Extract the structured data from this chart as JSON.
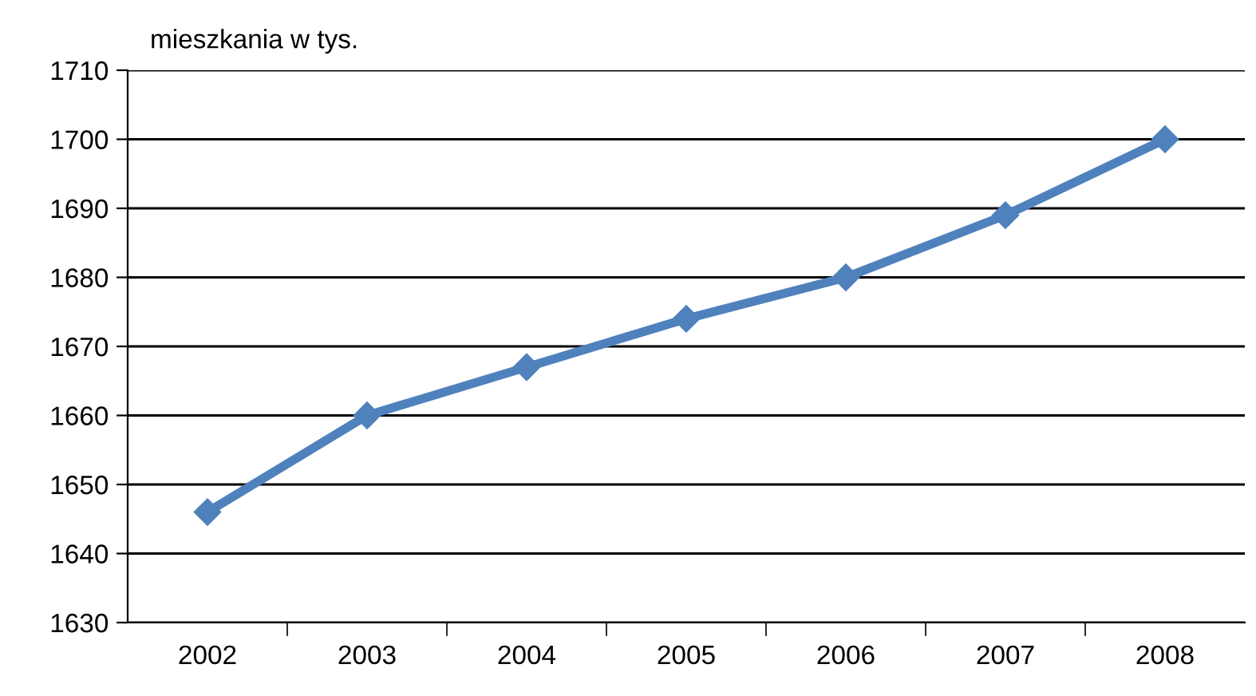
{
  "chart_data": {
    "type": "line",
    "ylabel": "mieszkania w tys.",
    "categories": [
      "2002",
      "2003",
      "2004",
      "2005",
      "2006",
      "2007",
      "2008"
    ],
    "series": [
      {
        "color": "#4f81bd",
        "values": [
          1646,
          1660,
          1667,
          1674,
          1680,
          1689,
          1700
        ]
      }
    ],
    "ylim": [
      1630,
      1710
    ],
    "yticks": [
      1630,
      1640,
      1650,
      1660,
      1670,
      1680,
      1690,
      1700,
      1710
    ],
    "grid": "y",
    "marker": "diamond",
    "line_style": "solid",
    "legend": false
  }
}
